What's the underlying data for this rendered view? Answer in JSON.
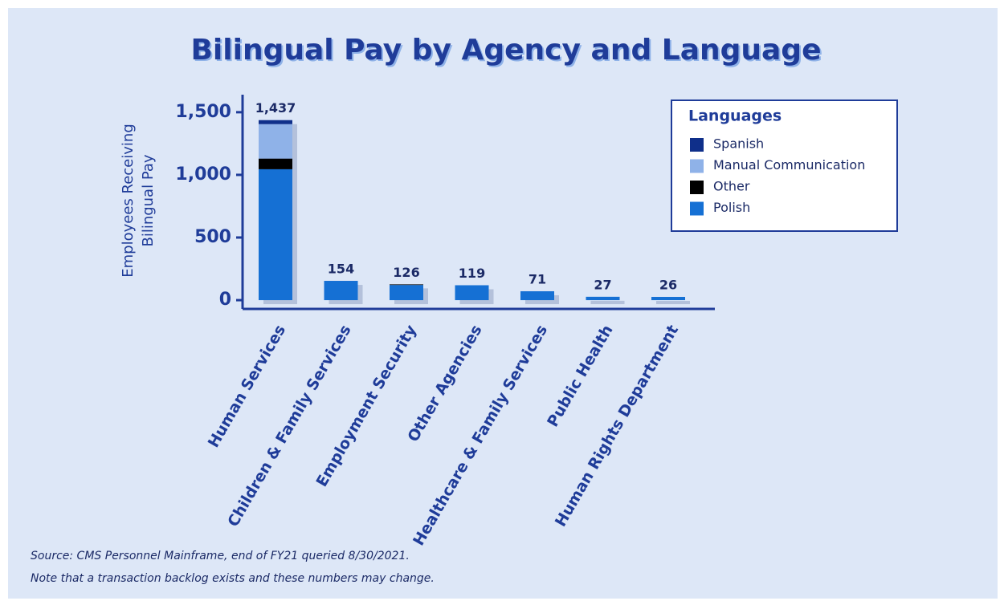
{
  "chart_data": {
    "type": "stacked_bar",
    "title": "Bilingual Pay by Agency and Language",
    "y_label": [
      "Employees Receiving",
      "Bilingual Pay"
    ],
    "categories": [
      "Human Services",
      "Children & Family Services",
      "Employment Security",
      "Other Agencies",
      "Healthcare & Family Services",
      "Public Health",
      "Human Rights Department"
    ],
    "series": [
      {
        "name": "Polish",
        "color": "#1570d4",
        "values": [
          1045,
          154,
          121,
          119,
          71,
          27,
          26
        ]
      },
      {
        "name": "Other",
        "color": "#000000",
        "values": [
          85,
          0,
          5,
          0,
          0,
          0,
          0
        ]
      },
      {
        "name": "Manual Communication",
        "color": "#8fb2e8",
        "values": [
          275,
          0,
          0,
          0,
          0,
          0,
          0
        ]
      },
      {
        "name": "Spanish",
        "color": "#0f2f8a",
        "values": [
          32,
          0,
          0,
          0,
          0,
          0,
          0
        ]
      }
    ],
    "totals": [
      1437,
      154,
      126,
      119,
      71,
      27,
      26
    ],
    "total_labels": [
      "1,437",
      "154",
      "126",
      "119",
      "71",
      "27",
      "26"
    ],
    "legend_title": "Languages",
    "legend_order": [
      3,
      2,
      1,
      0
    ],
    "legend": "upper right",
    "ylim": [
      -70,
      1640
    ],
    "yticks": [
      0,
      {
        "value": 500,
        "label": "500"
      },
      {
        "value": 1000,
        "label": "1,000"
      },
      {
        "value": 1500,
        "label": "1,500"
      }
    ],
    "notes": [
      "Source: CMS Personnel Mainframe, end of FY21 queried 8/30/2021.",
      "Note that a transaction backlog exists and these numbers may change."
    ]
  }
}
